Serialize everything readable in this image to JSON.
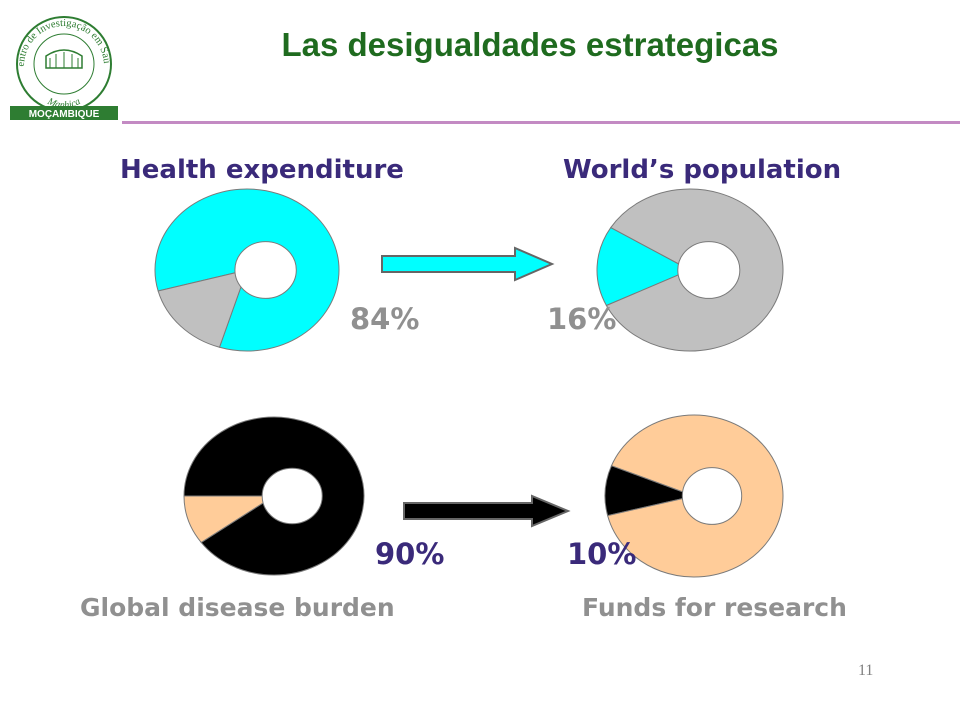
{
  "slide": {
    "title": "Las desigualdades estrategicas",
    "page_number": "11"
  },
  "logo": {
    "ring_text": "Centro de Investigação em Saúde",
    "inner_text": "Manhiça",
    "banner_text": "MOÇAMBIQUE",
    "color": "#2e7d32"
  },
  "colors": {
    "cyan": "#00ffff",
    "grey": "#c0c0c0",
    "black": "#000000",
    "peach": "#ffcc99",
    "title_green": "#1f6b1f",
    "label_purple": "#3a2a7a",
    "label_grey": "#909090",
    "rule": "#c38ac3"
  },
  "chart_data": [
    {
      "type": "pie",
      "title": "Health expenditure",
      "label": "84%",
      "slices": [
        {
          "value": 84,
          "color": "#00ffff"
        },
        {
          "value": 16,
          "color": "#c0c0c0"
        }
      ]
    },
    {
      "type": "pie",
      "title": "World’s population",
      "label": "16%",
      "slices": [
        {
          "value": 16,
          "color": "#00ffff"
        },
        {
          "value": 84,
          "color": "#c0c0c0"
        }
      ]
    },
    {
      "type": "pie",
      "title": "Global disease burden",
      "label": "90%",
      "slices": [
        {
          "value": 90,
          "color": "#000000"
        },
        {
          "value": 10,
          "color": "#ffcc99"
        }
      ]
    },
    {
      "type": "pie",
      "title": "Funds for research",
      "label": "10%",
      "slices": [
        {
          "value": 10,
          "color": "#000000"
        },
        {
          "value": 90,
          "color": "#ffcc99"
        }
      ]
    }
  ],
  "arrows": [
    {
      "color": "#00ffff"
    },
    {
      "color": "#000000"
    }
  ]
}
